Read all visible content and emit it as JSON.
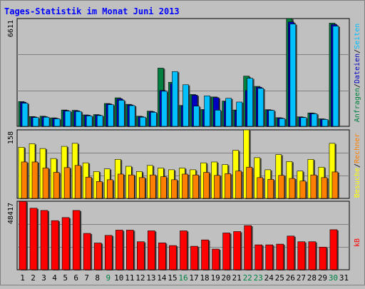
{
  "title": "Tages-Statistik im Monat Juni 2013",
  "colors": {
    "background": "#c0c0c0",
    "title": "#0000ff",
    "hits": "#008040",
    "files": "#0000c0",
    "pages": "#00c0ff",
    "visits": "#ffff00",
    "sites": "#ff8000",
    "kbytes": "#ff0000",
    "weekday_label": "#000000",
    "weekend_label": "#008040"
  },
  "chart_data": [
    {
      "type": "bar",
      "name": "top",
      "ymax_label": "6611",
      "ylim": [
        0,
        6611
      ],
      "legend": [
        {
          "text": "Anfragen",
          "color": "#008040"
        },
        {
          "text": "/",
          "color": "#000000"
        },
        {
          "text": "Dateien",
          "color": "#0000c0"
        },
        {
          "text": "/",
          "color": "#000000"
        },
        {
          "text": "Seiten",
          "color": "#00c0ff"
        }
      ],
      "series": [
        {
          "name": "Anfragen",
          "values": [
            1520,
            600,
            620,
            520,
            1000,
            980,
            700,
            720,
            1400,
            1750,
            1350,
            620,
            930,
            3570,
            2700,
            1280,
            1950,
            1030,
            1800,
            1550,
            1000,
            3080,
            2450,
            1020,
            530,
            6610,
            580,
            820,
            460,
            6330
          ]
        },
        {
          "name": "Dateien",
          "values": [
            1480,
            570,
            590,
            490,
            970,
            950,
            680,
            690,
            1370,
            1690,
            1310,
            590,
            900,
            2200,
            2620,
            1260,
            1910,
            1010,
            1760,
            1520,
            970,
            2200,
            2400,
            1000,
            510,
            6400,
            560,
            800,
            440,
            6250
          ]
        },
        {
          "name": "Seiten",
          "values": [
            1420,
            540,
            560,
            460,
            930,
            910,
            640,
            660,
            1330,
            1600,
            1270,
            560,
            860,
            2150,
            3360,
            2550,
            1240,
            1870,
            990,
            1720,
            1490,
            2950,
            2330,
            980,
            480,
            6280,
            540,
            770,
            420,
            6150
          ]
        }
      ]
    },
    {
      "type": "bar",
      "name": "middle",
      "ymax_label": "158",
      "ylim": [
        0,
        158
      ],
      "legend": [
        {
          "text": "Besuche",
          "color": "#ffff00"
        },
        {
          "text": "/",
          "color": "#000000"
        },
        {
          "text": "Rechner",
          "color": "#ff8000"
        }
      ],
      "series": [
        {
          "name": "Besuche",
          "values": [
            118,
            126,
            115,
            92,
            120,
            127,
            82,
            62,
            68,
            90,
            74,
            62,
            76,
            70,
            66,
            70,
            66,
            82,
            84,
            78,
            111,
            158,
            94,
            66,
            101,
            85,
            63,
            90,
            72,
            127
          ]
        },
        {
          "name": "Rechner",
          "values": [
            84,
            84,
            70,
            60,
            71,
            76,
            49,
            39,
            43,
            56,
            54,
            48,
            54,
            50,
            43,
            56,
            54,
            60,
            53,
            57,
            63,
            72,
            48,
            44,
            53,
            46,
            40,
            54,
            48,
            61
          ]
        }
      ]
    },
    {
      "type": "bar",
      "name": "bottom",
      "ymax_label": "48417",
      "ylim": [
        0,
        48417
      ],
      "legend": [
        {
          "text": "kB",
          "color": "#ff0000"
        }
      ],
      "series": [
        {
          "name": "kB",
          "values": [
            48300,
            43500,
            41900,
            34700,
            36900,
            41900,
            25700,
            18900,
            24300,
            28000,
            28000,
            19800,
            27500,
            19000,
            17100,
            27500,
            16600,
            21100,
            14600,
            26000,
            27000,
            31200,
            17600,
            17600,
            18100,
            23800,
            19800,
            19800,
            16000,
            28300
          ]
        }
      ]
    }
  ],
  "days": [
    {
      "label": "1",
      "weekend": false
    },
    {
      "label": "2",
      "weekend": false
    },
    {
      "label": "3",
      "weekend": false
    },
    {
      "label": "4",
      "weekend": false
    },
    {
      "label": "5",
      "weekend": false
    },
    {
      "label": "6",
      "weekend": false
    },
    {
      "label": "7",
      "weekend": false
    },
    {
      "label": "8",
      "weekend": false
    },
    {
      "label": "9",
      "weekend": true
    },
    {
      "label": "10",
      "weekend": false
    },
    {
      "label": "11",
      "weekend": false
    },
    {
      "label": "12",
      "weekend": false
    },
    {
      "label": "13",
      "weekend": false
    },
    {
      "label": "14",
      "weekend": false
    },
    {
      "label": "15",
      "weekend": false
    },
    {
      "label": "16",
      "weekend": true
    },
    {
      "label": "17",
      "weekend": false
    },
    {
      "label": "18",
      "weekend": false
    },
    {
      "label": "19",
      "weekend": false
    },
    {
      "label": "20",
      "weekend": false
    },
    {
      "label": "21",
      "weekend": false
    },
    {
      "label": "22",
      "weekend": true
    },
    {
      "label": "23",
      "weekend": true
    },
    {
      "label": "24",
      "weekend": false
    },
    {
      "label": "25",
      "weekend": false
    },
    {
      "label": "26",
      "weekend": false
    },
    {
      "label": "27",
      "weekend": false
    },
    {
      "label": "28",
      "weekend": false
    },
    {
      "label": "29",
      "weekend": false
    },
    {
      "label": "30",
      "weekend": true
    },
    {
      "label": "31",
      "weekend": false
    }
  ]
}
